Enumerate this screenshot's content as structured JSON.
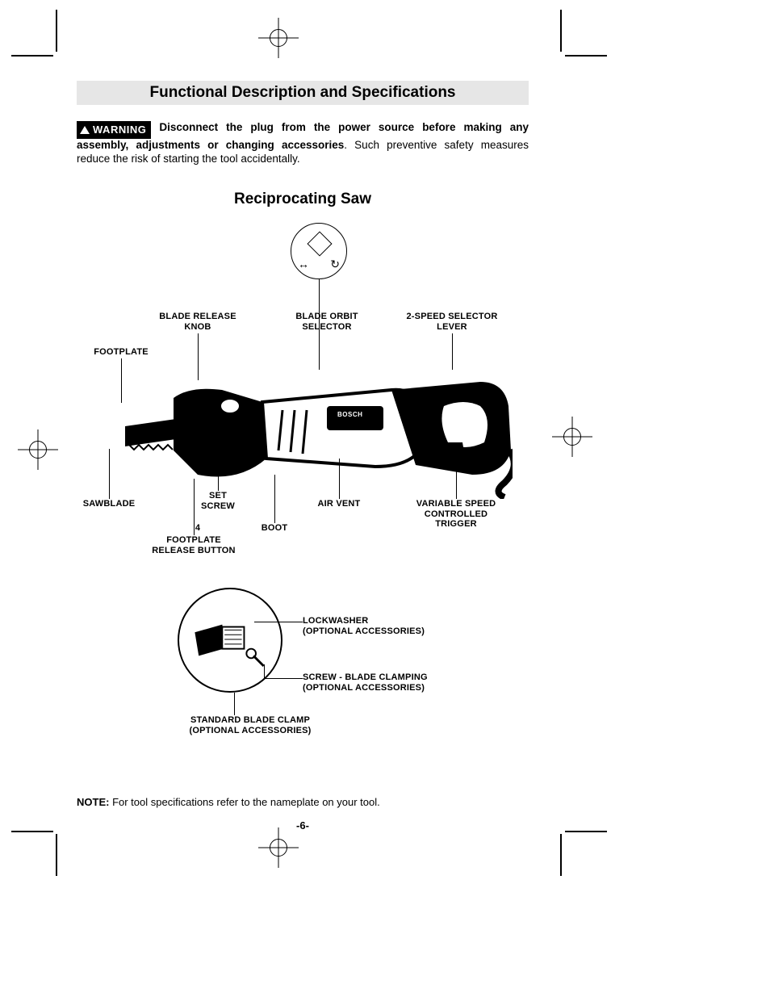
{
  "page": {
    "section_title": "Functional Description and Specifications",
    "product_title": "Reciprocating Saw",
    "page_number": "-6-",
    "note_label": "NOTE:",
    "note_text": " For tool specifications refer to the nameplate on your tool."
  },
  "warning": {
    "badge": "WARNING",
    "bold_lead": "Disconnect the plug from the power source before making any assembly, adjustments or changing accessories",
    "tail": ". Such preventive safety measures reduce the risk of starting the tool accidentally."
  },
  "callouts_top": {
    "blade_release_knob": "BLADE RELEASE\nKNOB",
    "blade_orbit_selector": "BLADE ORBIT\nSELECTOR",
    "speed_selector_lever": "2-SPEED SELECTOR\nLEVER",
    "footplate": "FOOTPLATE"
  },
  "callouts_bottom": {
    "sawblade": "SAWBLADE",
    "set_screw": "SET\nSCREW",
    "air_vent": "AIR VENT",
    "variable_speed_trigger": "VARIABLE SPEED\nCONTROLLED\nTRIGGER",
    "four": "4",
    "boot": "BOOT",
    "footplate_release_button": "FOOTPLATE\nRELEASE BUTTON"
  },
  "detail": {
    "lockwasher": "LOCKWASHER\n(OPTIONAL ACCESSORIES)",
    "screw_blade_clamping": "SCREW -  BLADE CLAMPING\n(OPTIONAL ACCESSORIES)",
    "standard_blade_clamp": "STANDARD BLADE CLAMP\n(OPTIONAL ACCESSORIES)"
  },
  "brand": "BOSCH",
  "colors": {
    "bg_grey": "#e6e6e6",
    "black": "#000000",
    "white": "#ffffff"
  }
}
